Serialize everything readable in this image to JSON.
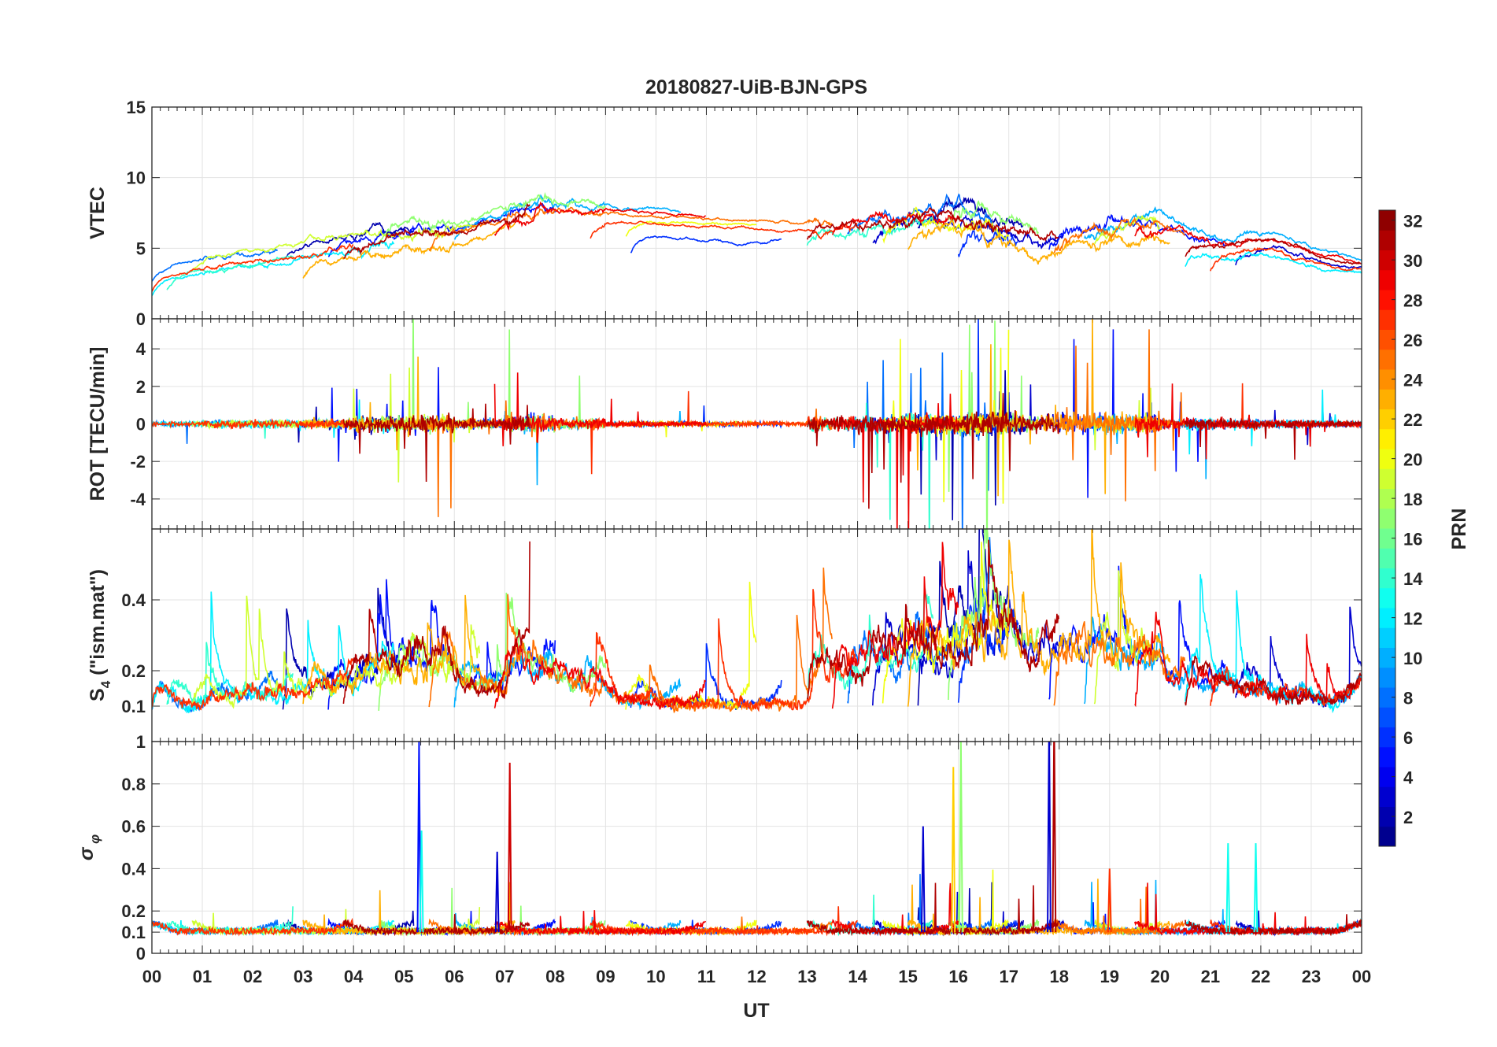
{
  "chart_data": {
    "type": "line",
    "title": "20180827-UiB-BJN-GPS",
    "xlabel": "UT",
    "xlim": [
      0,
      24
    ],
    "xticklabels": [
      "00",
      "01",
      "02",
      "03",
      "04",
      "05",
      "06",
      "07",
      "08",
      "09",
      "10",
      "11",
      "12",
      "13",
      "14",
      "15",
      "16",
      "17",
      "18",
      "19",
      "20",
      "21",
      "22",
      "23",
      "00"
    ],
    "grid": true,
    "panels": [
      {
        "id": "vtec",
        "ylabel": "VTEC",
        "ylim": [
          0,
          15
        ],
        "yticks": [
          0,
          5,
          10,
          15
        ],
        "yticklabels": [
          "0",
          "5",
          "10",
          "15"
        ]
      },
      {
        "id": "rot",
        "ylabel": "ROT [TECU/min]",
        "ylim": [
          -5.6,
          5.6
        ],
        "yticks": [
          -4,
          -2,
          0,
          2,
          4
        ],
        "yticklabels": [
          "-4",
          "-2",
          "0",
          "2",
          "4"
        ]
      },
      {
        "id": "s4",
        "ylabel": "S4 (\"ism.mat\")",
        "ylim": [
          0,
          0.6
        ],
        "yticks": [
          0.1,
          0.2,
          0.4
        ],
        "yticklabels": [
          "0.1",
          "0.2",
          "0.4"
        ]
      },
      {
        "id": "sigma",
        "ylabel": "σφ",
        "ylim": [
          0,
          1
        ],
        "yticks": [
          0,
          0.1,
          0.2,
          0.4,
          0.6,
          0.8,
          1
        ],
        "yticklabels": [
          "0",
          "0.1",
          "0.2",
          "0.4",
          "0.6",
          "0.8",
          "1"
        ]
      }
    ],
    "vtec_trend": [
      [
        0,
        3.6
      ],
      [
        1,
        4.2
      ],
      [
        2,
        4.6
      ],
      [
        3,
        5.0
      ],
      [
        4,
        5.6
      ],
      [
        5,
        6.0
      ],
      [
        6,
        6.2
      ],
      [
        7,
        7.2
      ],
      [
        7.6,
        7.8
      ],
      [
        9,
        7.3
      ],
      [
        10,
        7.2
      ],
      [
        12,
        6.8
      ],
      [
        14,
        6.8
      ],
      [
        15.5,
        7.4
      ],
      [
        16.5,
        6.8
      ],
      [
        17.5,
        5.5
      ],
      [
        18.5,
        6.2
      ],
      [
        19.5,
        6.8
      ],
      [
        21,
        5.0
      ],
      [
        22,
        5.5
      ],
      [
        23,
        4.3
      ],
      [
        24,
        3.6
      ]
    ],
    "activity": [
      0.5,
      0.8,
      0.8,
      1.0,
      1.6,
      1.8,
      1.0,
      1.8,
      1.2,
      0.6,
      0.5,
      0.5,
      0.5,
      1.4,
      2.0,
      2.2,
      2.6,
      2.0,
      2.2,
      2.0,
      1.2,
      1.0,
      0.8,
      0.6
    ],
    "series": [
      {
        "prn": 2,
        "arcs": [
          [
            2.6,
            5.2
          ],
          [
            15.2,
            17.3
          ]
        ],
        "offset": 0.5
      },
      {
        "prn": 3,
        "arcs": [
          [
            14.3,
            18.1
          ],
          [
            21.5,
            24
          ]
        ],
        "offset": -0.4
      },
      {
        "prn": 5,
        "arcs": [
          [
            3.5,
            8.0
          ],
          [
            17.8,
            21.3
          ]
        ],
        "offset": 0.3
      },
      {
        "prn": 6,
        "arcs": [
          [
            9.5,
            12.5
          ],
          [
            16.0,
            17.2
          ]
        ],
        "offset": -1.5
      },
      {
        "prn": 8,
        "arcs": [
          [
            0,
            2.5
          ],
          [
            13.8,
            16.7
          ]
        ],
        "offset": 0.2
      },
      {
        "prn": 10,
        "arcs": [
          [
            6.0,
            10.5
          ],
          [
            18.5,
            24
          ]
        ],
        "offset": 0.6
      },
      {
        "prn": 12,
        "arcs": [
          [
            0,
            4.8
          ],
          [
            20.5,
            24
          ]
        ],
        "offset": -0.8
      },
      {
        "prn": 14,
        "arcs": [
          [
            0.3,
            2.8
          ],
          [
            13.0,
            15.5
          ]
        ],
        "offset": -0.6
      },
      {
        "prn": 17,
        "arcs": [
          [
            4.5,
            9.0
          ],
          [
            15.8,
            17.6
          ]
        ],
        "offset": 0.8
      },
      {
        "prn": 19,
        "arcs": [
          [
            0.8,
            6.5
          ],
          [
            18.7,
            20.0
          ]
        ],
        "offset": 0.4
      },
      {
        "prn": 20,
        "arcs": [
          [
            9.4,
            12.0
          ],
          [
            14.5,
            17.0
          ]
        ],
        "offset": -0.3
      },
      {
        "prn": 23,
        "arcs": [
          [
            3.0,
            7.2
          ],
          [
            15.0,
            20.2
          ]
        ],
        "offset": -1.0
      },
      {
        "prn": 25,
        "arcs": [
          [
            5.5,
            13.5
          ],
          [
            17.9,
            20.5
          ]
        ],
        "offset": 0.1
      },
      {
        "prn": 27,
        "arcs": [
          [
            0,
            4.0
          ],
          [
            8.7,
            14.0
          ],
          [
            21.0,
            24
          ]
        ],
        "offset": -0.5
      },
      {
        "prn": 29,
        "arcs": [
          [
            6.8,
            11.0
          ],
          [
            13.5,
            16.0
          ],
          [
            19.5,
            24
          ]
        ],
        "offset": 0.2
      },
      {
        "prn": 31,
        "arcs": [
          [
            3.8,
            7.5
          ],
          [
            13.0,
            18.0
          ],
          [
            20.5,
            24
          ]
        ],
        "offset": 0.0
      }
    ],
    "sigma_peaks": [
      [
        5.3,
        5,
        1.0
      ],
      [
        5.35,
        13,
        0.58
      ],
      [
        7.1,
        30,
        0.9
      ],
      [
        6.85,
        3,
        0.48
      ],
      [
        15.3,
        3,
        0.6
      ],
      [
        15.9,
        22,
        0.88
      ],
      [
        16.05,
        17,
        1.0
      ],
      [
        17.8,
        3,
        1.1
      ],
      [
        17.9,
        31,
        1.1
      ],
      [
        21.35,
        13,
        0.52
      ],
      [
        21.9,
        13,
        0.52
      ],
      [
        19.0,
        27,
        0.4
      ]
    ],
    "colorbar": {
      "label": "PRN",
      "range": [
        1,
        32
      ],
      "ticks": [
        "2",
        "4",
        "6",
        "8",
        "10",
        "12",
        "14",
        "16",
        "18",
        "20",
        "22",
        "24",
        "26",
        "28",
        "30",
        "32"
      ]
    }
  }
}
